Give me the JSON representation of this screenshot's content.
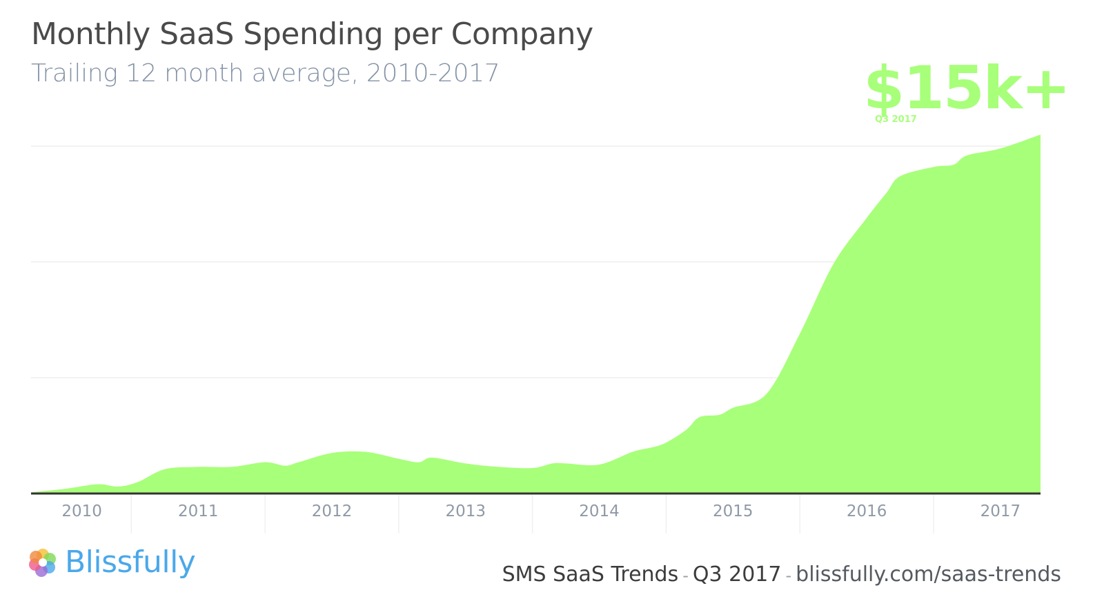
{
  "header": {
    "title": "Monthly SaaS Spending per Company",
    "subtitle": "Trailing 12 month average, 2010-2017"
  },
  "callout": {
    "value": "$15k+",
    "period": "Q3 2017",
    "color": "#a8ff7a"
  },
  "footer": {
    "brand_name": "Blissfully",
    "brand_color": "#4aa8ea",
    "report_name": "SMS SaaS Trends",
    "separator": "-",
    "quarter": "Q3 2017",
    "url": "blissfully.com/saas-trends"
  },
  "chart_data": {
    "type": "area",
    "x": [
      2010.0,
      2010.25,
      2010.5,
      2010.65,
      2010.8,
      2011.0,
      2011.25,
      2011.5,
      2011.75,
      2011.9,
      2012.0,
      2012.25,
      2012.5,
      2012.75,
      2012.9,
      2013.0,
      2013.25,
      2013.5,
      2013.75,
      2013.9,
      2014.0,
      2014.25,
      2014.5,
      2014.65,
      2014.75,
      2014.9,
      2015.0,
      2015.15,
      2015.25,
      2015.5,
      2015.75,
      2016.0,
      2016.25,
      2016.4,
      2016.5,
      2016.75,
      2016.9,
      2017.0,
      2017.25,
      2017.55
    ],
    "values": [
      50,
      200,
      400,
      300,
      500,
      1050,
      1150,
      1150,
      1350,
      1200,
      1350,
      1750,
      1800,
      1500,
      1350,
      1550,
      1300,
      1150,
      1100,
      1300,
      1300,
      1250,
      1800,
      2000,
      2200,
      2750,
      3300,
      3400,
      3700,
      4300,
      6900,
      9900,
      11900,
      13000,
      13700,
      14100,
      14200,
      14600,
      14900,
      15500
    ],
    "xlabel": "",
    "ylabel": "",
    "xlim": [
      2010.0,
      2017.55
    ],
    "ylim": [
      0,
      15000
    ],
    "x_tick_labels": [
      "2010",
      "2011",
      "2012",
      "2013",
      "2014",
      "2015",
      "2016",
      "2017"
    ],
    "x_tick_positions": [
      2010.38,
      2011.25,
      2012.25,
      2013.25,
      2014.25,
      2015.25,
      2016.25,
      2017.25
    ],
    "x_separator_positions": [
      2010.75,
      2011.75,
      2012.75,
      2013.75,
      2014.75,
      2015.75,
      2016.75
    ],
    "y_gridlines": [
      5000,
      10000,
      15000
    ],
    "y_tick_labels_shown": false,
    "grid": true,
    "legend": "none",
    "fill_color": "#a8ff7a",
    "axis_color": "#333333",
    "gridline_color": "#eeeeee",
    "tick_label_color": "#8f99a6"
  }
}
